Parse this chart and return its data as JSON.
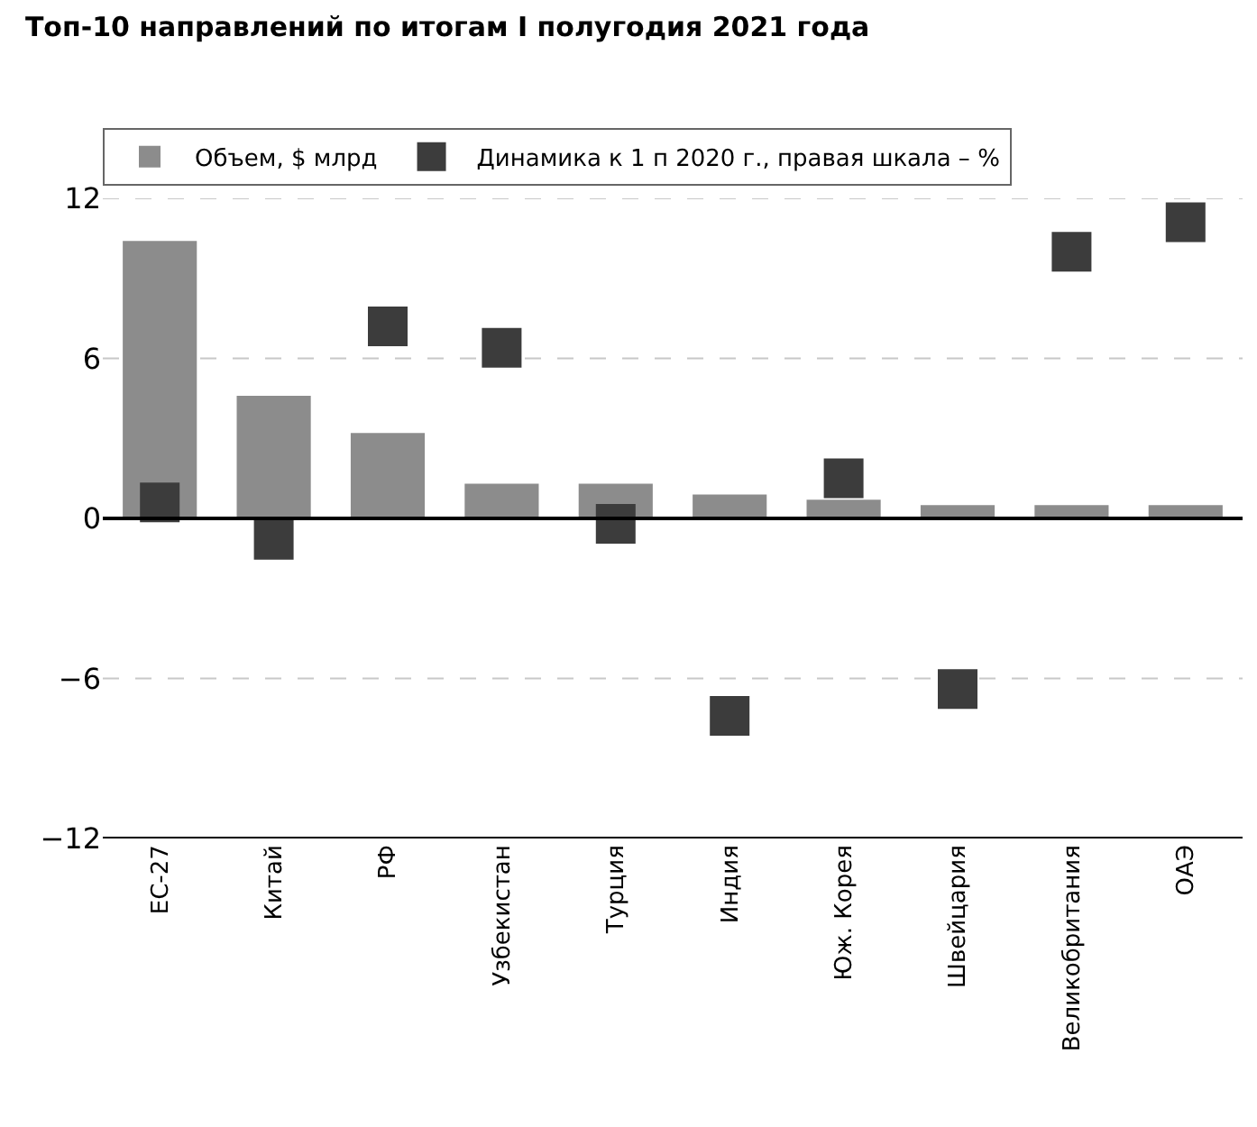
{
  "chart_data": {
    "type": "bar",
    "title": "Топ-10 направлений по итогам I полугодия 2021 года",
    "categories": [
      "ЕС-27",
      "Китай",
      "РФ",
      "Узбекистан",
      "Турция",
      "Индия",
      "Юж. Корея",
      "Швейцария",
      "Великобритания",
      "ОАЭ"
    ],
    "series": [
      {
        "name": "Объем, $ млрд",
        "color": "#8c8c8c",
        "values": [
          10.4,
          4.6,
          3.2,
          1.3,
          1.3,
          0.9,
          0.7,
          0.5,
          0.5,
          0.5
        ]
      },
      {
        "name": "Динамика к 1 п 2020 г., правая шкала – %",
        "type": "scatter",
        "marker": "square",
        "color": "#3c3c3c",
        "values": [
          0.6,
          -0.8,
          7.2,
          6.4,
          -0.2,
          -7.4,
          1.5,
          -6.4,
          10.0,
          11.1
        ]
      }
    ],
    "ylim": [
      -12,
      12
    ],
    "yticks": [
      -12,
      -6,
      0,
      6,
      12
    ],
    "grid": "y",
    "legend": "top"
  }
}
